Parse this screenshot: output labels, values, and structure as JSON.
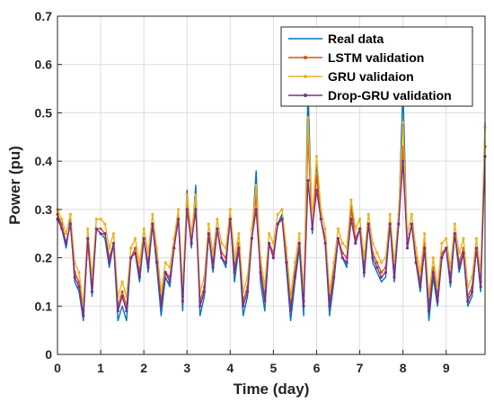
{
  "chart_data": {
    "type": "line",
    "title": "",
    "xlabel": "Time (day)",
    "ylabel": "Power (pu)",
    "xlim": [
      0,
      9.9
    ],
    "ylim": [
      0,
      0.7
    ],
    "x_ticks": [
      0,
      1,
      2,
      3,
      4,
      5,
      6,
      7,
      8,
      9
    ],
    "x_tick_labels": [
      "0",
      "1",
      "2",
      "3",
      "4",
      "5",
      "6",
      "7",
      "8",
      "9"
    ],
    "y_ticks": [
      0,
      0.1,
      0.2,
      0.3,
      0.4,
      0.5,
      0.6,
      0.7
    ],
    "y_tick_labels": [
      "0",
      "0.1",
      "0.2",
      "0.3",
      "0.4",
      "0.5",
      "0.6",
      "0.7"
    ],
    "grid": true,
    "legend_position": "top-right",
    "series": [
      {
        "name": "Real data",
        "color": "#0072BD",
        "marker": false,
        "x": [
          0,
          0.1,
          0.2,
          0.3,
          0.4,
          0.5,
          0.6,
          0.7,
          0.8,
          0.9,
          1.0,
          1.1,
          1.2,
          1.3,
          1.4,
          1.5,
          1.6,
          1.7,
          1.8,
          1.9,
          2.0,
          2.1,
          2.2,
          2.3,
          2.4,
          2.5,
          2.6,
          2.7,
          2.8,
          2.9,
          3.0,
          3.1,
          3.2,
          3.3,
          3.4,
          3.5,
          3.6,
          3.7,
          3.8,
          3.9,
          4.0,
          4.1,
          4.2,
          4.3,
          4.4,
          4.5,
          4.6,
          4.7,
          4.8,
          4.9,
          5.0,
          5.1,
          5.2,
          5.3,
          5.4,
          5.5,
          5.6,
          5.7,
          5.8,
          5.9,
          6.0,
          6.1,
          6.2,
          6.3,
          6.4,
          6.5,
          6.6,
          6.7,
          6.8,
          6.9,
          7.0,
          7.1,
          7.2,
          7.3,
          7.4,
          7.5,
          7.6,
          7.7,
          7.8,
          7.9,
          8.0,
          8.1,
          8.2,
          8.3,
          8.4,
          8.5,
          8.6,
          8.7,
          8.8,
          8.9,
          9.0,
          9.1,
          9.2,
          9.3,
          9.4,
          9.5,
          9.6,
          9.7,
          9.8,
          9.9
        ],
        "y": [
          0.29,
          0.26,
          0.22,
          0.28,
          0.15,
          0.13,
          0.07,
          0.24,
          0.12,
          0.26,
          0.25,
          0.24,
          0.18,
          0.23,
          0.07,
          0.1,
          0.07,
          0.2,
          0.21,
          0.15,
          0.24,
          0.17,
          0.27,
          0.18,
          0.08,
          0.16,
          0.14,
          0.22,
          0.29,
          0.09,
          0.34,
          0.22,
          0.35,
          0.08,
          0.12,
          0.25,
          0.17,
          0.26,
          0.2,
          0.18,
          0.29,
          0.15,
          0.22,
          0.08,
          0.12,
          0.24,
          0.38,
          0.15,
          0.09,
          0.23,
          0.2,
          0.27,
          0.29,
          0.18,
          0.07,
          0.15,
          0.22,
          0.08,
          0.55,
          0.25,
          0.4,
          0.28,
          0.23,
          0.08,
          0.15,
          0.24,
          0.2,
          0.18,
          0.32,
          0.23,
          0.26,
          0.16,
          0.27,
          0.19,
          0.17,
          0.15,
          0.16,
          0.27,
          0.15,
          0.27,
          0.55,
          0.22,
          0.27,
          0.19,
          0.13,
          0.22,
          0.07,
          0.16,
          0.1,
          0.2,
          0.22,
          0.14,
          0.25,
          0.17,
          0.21,
          0.1,
          0.12,
          0.22,
          0.13,
          0.48
        ]
      },
      {
        "name": "LSTM validation",
        "color": "#D95319",
        "marker": true,
        "x": [
          0,
          0.1,
          0.2,
          0.3,
          0.4,
          0.5,
          0.6,
          0.7,
          0.8,
          0.9,
          1.0,
          1.1,
          1.2,
          1.3,
          1.4,
          1.5,
          1.6,
          1.7,
          1.8,
          1.9,
          2.0,
          2.1,
          2.2,
          2.3,
          2.4,
          2.5,
          2.6,
          2.7,
          2.8,
          2.9,
          3.0,
          3.1,
          3.2,
          3.3,
          3.4,
          3.5,
          3.6,
          3.7,
          3.8,
          3.9,
          4.0,
          4.1,
          4.2,
          4.3,
          4.4,
          4.5,
          4.6,
          4.7,
          4.8,
          4.9,
          5.0,
          5.1,
          5.2,
          5.3,
          5.4,
          5.5,
          5.6,
          5.7,
          5.8,
          5.9,
          6.0,
          6.1,
          6.2,
          6.3,
          6.4,
          6.5,
          6.6,
          6.7,
          6.8,
          6.9,
          7.0,
          7.1,
          7.2,
          7.3,
          7.4,
          7.5,
          7.6,
          7.7,
          7.8,
          7.9,
          8.0,
          8.1,
          8.2,
          8.3,
          8.4,
          8.5,
          8.6,
          8.7,
          8.8,
          8.9,
          9.0,
          9.1,
          9.2,
          9.3,
          9.4,
          9.5,
          9.6,
          9.7,
          9.8,
          9.9
        ],
        "y": [
          0.29,
          0.27,
          0.23,
          0.27,
          0.17,
          0.15,
          0.09,
          0.23,
          0.14,
          0.26,
          0.26,
          0.25,
          0.2,
          0.23,
          0.1,
          0.13,
          0.1,
          0.2,
          0.22,
          0.17,
          0.24,
          0.19,
          0.27,
          0.2,
          0.11,
          0.17,
          0.16,
          0.22,
          0.28,
          0.12,
          0.31,
          0.23,
          0.31,
          0.11,
          0.14,
          0.25,
          0.19,
          0.26,
          0.21,
          0.2,
          0.28,
          0.18,
          0.23,
          0.11,
          0.14,
          0.24,
          0.33,
          0.18,
          0.12,
          0.23,
          0.21,
          0.27,
          0.28,
          0.2,
          0.1,
          0.17,
          0.23,
          0.11,
          0.45,
          0.26,
          0.37,
          0.28,
          0.24,
          0.11,
          0.17,
          0.24,
          0.21,
          0.2,
          0.3,
          0.24,
          0.26,
          0.18,
          0.27,
          0.21,
          0.19,
          0.17,
          0.18,
          0.27,
          0.17,
          0.27,
          0.43,
          0.23,
          0.27,
          0.2,
          0.15,
          0.23,
          0.1,
          0.18,
          0.12,
          0.21,
          0.22,
          0.16,
          0.25,
          0.19,
          0.22,
          0.12,
          0.14,
          0.22,
          0.15,
          0.43
        ]
      },
      {
        "name": "GRU validaion",
        "color": "#EDB120",
        "marker": true,
        "x": [
          0,
          0.1,
          0.2,
          0.3,
          0.4,
          0.5,
          0.6,
          0.7,
          0.8,
          0.9,
          1.0,
          1.1,
          1.2,
          1.3,
          1.4,
          1.5,
          1.6,
          1.7,
          1.8,
          1.9,
          2.0,
          2.1,
          2.2,
          2.3,
          2.4,
          2.5,
          2.6,
          2.7,
          2.8,
          2.9,
          3.0,
          3.1,
          3.2,
          3.3,
          3.4,
          3.5,
          3.6,
          3.7,
          3.8,
          3.9,
          4.0,
          4.1,
          4.2,
          4.3,
          4.4,
          4.5,
          4.6,
          4.7,
          4.8,
          4.9,
          5.0,
          5.1,
          5.2,
          5.3,
          5.4,
          5.5,
          5.6,
          5.7,
          5.8,
          5.9,
          6.0,
          6.1,
          6.2,
          6.3,
          6.4,
          6.5,
          6.6,
          6.7,
          6.8,
          6.9,
          7.0,
          7.1,
          7.2,
          7.3,
          7.4,
          7.5,
          7.6,
          7.7,
          7.8,
          7.9,
          8.0,
          8.1,
          8.2,
          8.3,
          8.4,
          8.5,
          8.6,
          8.7,
          8.8,
          8.9,
          9.0,
          9.1,
          9.2,
          9.3,
          9.4,
          9.5,
          9.6,
          9.7,
          9.8,
          9.9
        ],
        "y": [
          0.3,
          0.28,
          0.25,
          0.29,
          0.19,
          0.17,
          0.1,
          0.26,
          0.16,
          0.28,
          0.28,
          0.27,
          0.22,
          0.25,
          0.12,
          0.15,
          0.12,
          0.22,
          0.24,
          0.19,
          0.26,
          0.21,
          0.29,
          0.22,
          0.13,
          0.19,
          0.18,
          0.24,
          0.3,
          0.14,
          0.33,
          0.25,
          0.33,
          0.13,
          0.16,
          0.27,
          0.21,
          0.28,
          0.23,
          0.22,
          0.3,
          0.2,
          0.25,
          0.13,
          0.16,
          0.26,
          0.35,
          0.2,
          0.14,
          0.25,
          0.23,
          0.29,
          0.3,
          0.22,
          0.12,
          0.19,
          0.25,
          0.13,
          0.49,
          0.28,
          0.41,
          0.3,
          0.26,
          0.13,
          0.19,
          0.26,
          0.23,
          0.22,
          0.32,
          0.26,
          0.28,
          0.2,
          0.29,
          0.23,
          0.21,
          0.19,
          0.2,
          0.29,
          0.19,
          0.29,
          0.48,
          0.25,
          0.29,
          0.22,
          0.17,
          0.25,
          0.12,
          0.2,
          0.14,
          0.23,
          0.24,
          0.18,
          0.27,
          0.21,
          0.24,
          0.14,
          0.16,
          0.24,
          0.17,
          0.47
        ]
      },
      {
        "name": "Drop-GRU validation",
        "color": "#7E2F8E",
        "marker": true,
        "x": [
          0,
          0.1,
          0.2,
          0.3,
          0.4,
          0.5,
          0.6,
          0.7,
          0.8,
          0.9,
          1.0,
          1.1,
          1.2,
          1.3,
          1.4,
          1.5,
          1.6,
          1.7,
          1.8,
          1.9,
          2.0,
          2.1,
          2.2,
          2.3,
          2.4,
          2.5,
          2.6,
          2.7,
          2.8,
          2.9,
          3.0,
          3.1,
          3.2,
          3.3,
          3.4,
          3.5,
          3.6,
          3.7,
          3.8,
          3.9,
          4.0,
          4.1,
          4.2,
          4.3,
          4.4,
          4.5,
          4.6,
          4.7,
          4.8,
          4.9,
          5.0,
          5.1,
          5.2,
          5.3,
          5.4,
          5.5,
          5.6,
          5.7,
          5.8,
          5.9,
          6.0,
          6.1,
          6.2,
          6.3,
          6.4,
          6.5,
          6.6,
          6.7,
          6.8,
          6.9,
          7.0,
          7.1,
          7.2,
          7.3,
          7.4,
          7.5,
          7.6,
          7.7,
          7.8,
          7.9,
          8.0,
          8.1,
          8.2,
          8.3,
          8.4,
          8.5,
          8.6,
          8.7,
          8.8,
          8.9,
          9.0,
          9.1,
          9.2,
          9.3,
          9.4,
          9.5,
          9.6,
          9.7,
          9.8,
          9.9
        ],
        "y": [
          0.28,
          0.26,
          0.23,
          0.27,
          0.16,
          0.14,
          0.08,
          0.24,
          0.13,
          0.26,
          0.25,
          0.25,
          0.19,
          0.23,
          0.09,
          0.12,
          0.09,
          0.2,
          0.21,
          0.16,
          0.24,
          0.18,
          0.27,
          0.19,
          0.1,
          0.17,
          0.15,
          0.22,
          0.28,
          0.11,
          0.3,
          0.23,
          0.3,
          0.1,
          0.13,
          0.25,
          0.18,
          0.26,
          0.2,
          0.19,
          0.28,
          0.17,
          0.22,
          0.1,
          0.13,
          0.24,
          0.3,
          0.17,
          0.11,
          0.23,
          0.2,
          0.27,
          0.28,
          0.19,
          0.09,
          0.16,
          0.23,
          0.1,
          0.36,
          0.26,
          0.34,
          0.28,
          0.23,
          0.1,
          0.16,
          0.24,
          0.2,
          0.19,
          0.28,
          0.23,
          0.26,
          0.17,
          0.27,
          0.2,
          0.18,
          0.16,
          0.17,
          0.27,
          0.16,
          0.27,
          0.4,
          0.22,
          0.27,
          0.19,
          0.14,
          0.22,
          0.09,
          0.17,
          0.11,
          0.2,
          0.22,
          0.15,
          0.25,
          0.18,
          0.21,
          0.11,
          0.13,
          0.22,
          0.14,
          0.41
        ]
      }
    ]
  }
}
